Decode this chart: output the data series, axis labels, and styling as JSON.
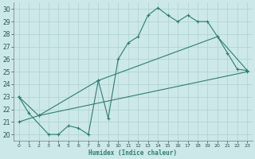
{
  "line1_x": [
    0,
    1,
    3,
    4,
    5,
    6,
    7,
    8,
    9,
    10,
    11,
    12,
    13,
    14,
    15,
    16,
    17,
    18,
    19,
    20,
    21,
    22,
    23
  ],
  "line1_y": [
    23.0,
    21.7,
    20.0,
    20.0,
    20.7,
    20.5,
    20.0,
    24.3,
    21.3,
    26.0,
    27.3,
    27.8,
    29.5,
    30.1,
    29.5,
    29.0,
    29.5,
    29.0,
    29.0,
    27.8,
    26.5,
    25.2,
    25.1
  ],
  "line2_x": [
    0,
    2,
    8,
    20,
    23
  ],
  "line2_y": [
    23.0,
    21.5,
    24.3,
    27.8,
    25.1
  ],
  "line3_x": [
    0,
    2,
    23
  ],
  "line3_y": [
    21.0,
    21.5,
    25.0
  ],
  "color": "#2e7d72",
  "bg_color": "#cce8e8",
  "grid_color": "#b0d0d0",
  "xlabel": "Humidex (Indice chaleur)",
  "ylim": [
    19.5,
    30.5
  ],
  "xlim": [
    -0.5,
    23.5
  ],
  "yticks": [
    20,
    21,
    22,
    23,
    24,
    25,
    26,
    27,
    28,
    29,
    30
  ],
  "xticks": [
    0,
    1,
    2,
    3,
    4,
    5,
    6,
    7,
    8,
    9,
    10,
    11,
    12,
    13,
    14,
    15,
    16,
    17,
    18,
    19,
    20,
    21,
    22,
    23
  ]
}
